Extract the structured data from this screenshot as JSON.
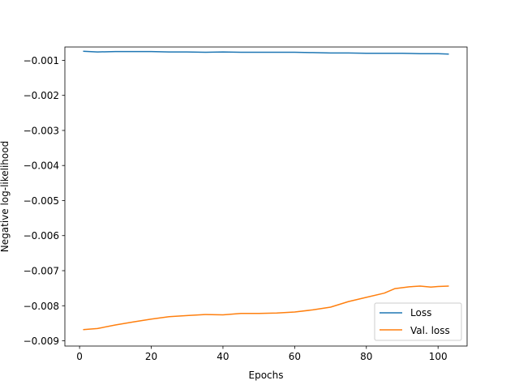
{
  "chart_data": {
    "type": "line",
    "title": "",
    "xlabel": "Epochs",
    "ylabel": "Negative log-likelihood",
    "xlim": [
      -4.1,
      108.1
    ],
    "ylim": [
      -0.00915,
      -0.00062
    ],
    "x_ticks": [
      0,
      20,
      40,
      60,
      80,
      100
    ],
    "x_tick_labels": [
      "0",
      "20",
      "40",
      "60",
      "80",
      "100"
    ],
    "y_ticks": [
      -0.009,
      -0.008,
      -0.007,
      -0.006,
      -0.005,
      -0.004,
      -0.003,
      -0.002,
      -0.001
    ],
    "y_tick_labels": [
      "−0.009",
      "−0.008",
      "−0.007",
      "−0.006",
      "−0.005",
      "−0.004",
      "−0.003",
      "−0.002",
      "−0.001"
    ],
    "grid": false,
    "legend_position": "lower-right",
    "series": [
      {
        "name": "Loss",
        "color": "#1f77b4",
        "x": [
          1,
          5,
          10,
          15,
          20,
          25,
          30,
          35,
          40,
          45,
          50,
          55,
          60,
          65,
          70,
          75,
          80,
          85,
          90,
          95,
          100,
          103
        ],
        "y": [
          -0.00074,
          -0.00076,
          -0.00075,
          -0.00075,
          -0.00075,
          -0.00076,
          -0.00076,
          -0.00077,
          -0.00076,
          -0.00077,
          -0.00077,
          -0.00077,
          -0.00077,
          -0.00078,
          -0.00079,
          -0.00079,
          -0.0008,
          -0.0008,
          -0.0008,
          -0.00081,
          -0.00081,
          -0.00082
        ]
      },
      {
        "name": "Val. loss",
        "color": "#ff7f0e",
        "x": [
          1,
          5,
          10,
          15,
          20,
          25,
          30,
          35,
          40,
          45,
          50,
          55,
          60,
          65,
          70,
          75,
          80,
          85,
          88,
          92,
          95,
          98,
          100,
          103
        ],
        "y": [
          -0.00868,
          -0.00865,
          -0.00855,
          -0.00846,
          -0.00838,
          -0.00831,
          -0.00828,
          -0.00825,
          -0.00826,
          -0.00822,
          -0.00822,
          -0.00821,
          -0.00818,
          -0.00812,
          -0.00804,
          -0.00788,
          -0.00776,
          -0.00764,
          -0.00751,
          -0.00746,
          -0.00744,
          -0.00747,
          -0.00745,
          -0.00744
        ]
      }
    ]
  }
}
